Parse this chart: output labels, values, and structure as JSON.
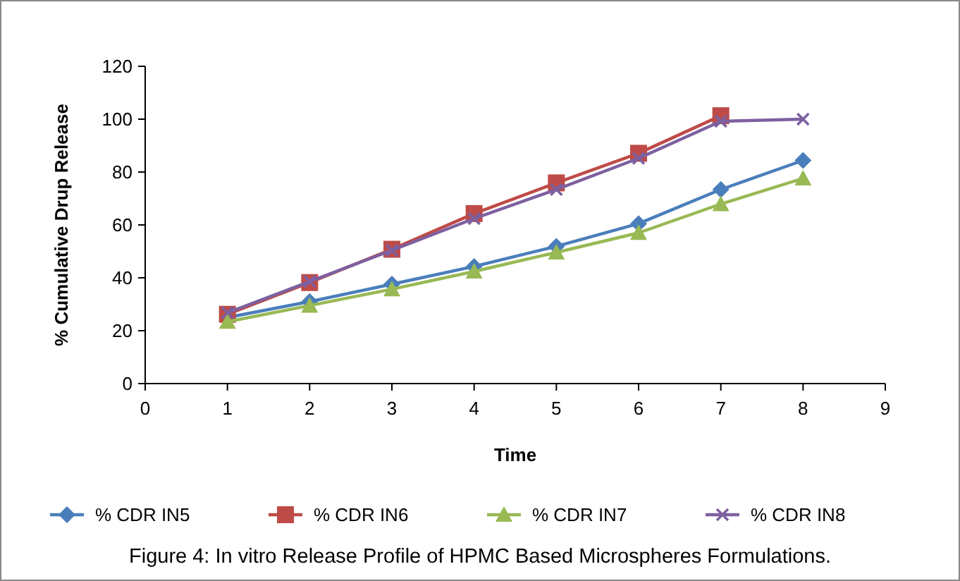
{
  "chart_data": {
    "type": "line",
    "xlabel": "Time",
    "ylabel": "% Cumulative Drup Release",
    "x": [
      1,
      2,
      3,
      4,
      5,
      6,
      7,
      8
    ],
    "xlim": [
      0,
      9
    ],
    "xticks": [
      0,
      1,
      2,
      3,
      4,
      5,
      6,
      7,
      8,
      9
    ],
    "ylim": [
      0,
      120
    ],
    "yticks": [
      0,
      20,
      40,
      60,
      80,
      100,
      120
    ],
    "grid": false,
    "legend": "bottom",
    "line_style": "solid",
    "series": [
      {
        "name": "% CDR IN5",
        "color": "#4a7ebb",
        "marker": "diamond",
        "values": [
          25,
          31,
          37.6,
          44.3,
          51.9,
          60.5,
          73.4,
          84.4
        ]
      },
      {
        "name": "% CDR IN6",
        "color": "#be4b48",
        "marker": "square",
        "values": [
          26.2,
          38.2,
          50.8,
          64.3,
          75.9,
          87.1,
          101.3,
          null
        ]
      },
      {
        "name": "% CDR IN7",
        "color": "#98b954",
        "marker": "triangle",
        "values": [
          23.4,
          29.5,
          35.7,
          42.4,
          49.6,
          57,
          67.9,
          77.6
        ]
      },
      {
        "name": "% CDR IN8",
        "color": "#7d60a0",
        "marker": "cross",
        "values": [
          26.8,
          38.6,
          50.4,
          62.4,
          73.4,
          85.2,
          99.2,
          100
        ]
      }
    ],
    "annotations": [
      "Figure 4: In vitro Release Profile of HPMC Based Microspheres Formulations."
    ]
  }
}
